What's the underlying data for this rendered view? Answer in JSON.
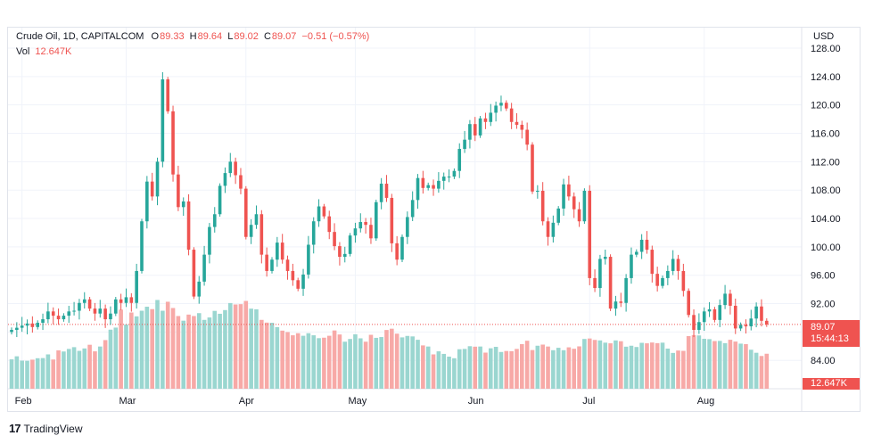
{
  "legend": {
    "symbol": "Crude Oil, 1D, CAPITALCOM",
    "o_label": "O",
    "o_value": "89.33",
    "h_label": "H",
    "h_value": "89.64",
    "l_label": "L",
    "l_value": "89.02",
    "c_label": "C",
    "c_value": "89.07",
    "change": "−0.51 (−0.57%)",
    "vol_label": "Vol",
    "vol_value": "12.647K"
  },
  "currency": "USD",
  "price_tag": {
    "price": "89.07",
    "countdown": "15:44:13"
  },
  "volume_tag": "12.647K",
  "brand": {
    "logo": "17",
    "name": "TradingView"
  },
  "colors": {
    "up": "#26a69a",
    "down": "#ef5350",
    "vol_up": "#9ad6d0",
    "vol_down": "#f7a9a7",
    "grid": "#f0f3fa"
  },
  "chart_data": {
    "type": "candlestick",
    "ylim": [
      80.5,
      128.5
    ],
    "y_ticks": [
      "128.00",
      "124.00",
      "120.00",
      "116.00",
      "112.00",
      "108.00",
      "104.00",
      "100.00",
      "96.00",
      "92.00",
      "88.00",
      "84.00"
    ],
    "month_labels": [
      {
        "label": "Feb",
        "index": 2
      },
      {
        "label": "Mar",
        "index": 22
      },
      {
        "label": "Apr",
        "index": 45
      },
      {
        "label": "May",
        "index": 66
      },
      {
        "label": "Jun",
        "index": 89
      },
      {
        "label": "Jul",
        "index": 111
      },
      {
        "label": "Aug",
        "index": 133
      }
    ],
    "last_price": 89.07,
    "closes": [
      88.3,
      88.6,
      88.9,
      89.2,
      88.7,
      89.3,
      89.8,
      90.9,
      90.3,
      89.8,
      90.3,
      90.9,
      91.0,
      92.1,
      92.6,
      91.3,
      90.6,
      91.3,
      89.8,
      90.6,
      92.6,
      92.1,
      92.9,
      92.1,
      96.6,
      103.6,
      109.2,
      107.1,
      112.0,
      123.6,
      119.1,
      110.2,
      105.6,
      106.4,
      99.6,
      93.0,
      95.1,
      98.9,
      102.8,
      104.6,
      108.6,
      110.4,
      112.0,
      110.1,
      108.2,
      101.4,
      103.1,
      104.6,
      98.9,
      96.6,
      98.2,
      100.6,
      98.2,
      96.6,
      95.3,
      94.1,
      96.1,
      100.3,
      103.6,
      105.7,
      104.3,
      102.1,
      100.1,
      98.6,
      99.0,
      101.6,
      102.6,
      103.5,
      103.1,
      101.2,
      106.3,
      108.9,
      106.9,
      100.5,
      98.2,
      101.4,
      104.2,
      106.6,
      109.7,
      108.3,
      108.7,
      108.2,
      109.3,
      109.9,
      109.9,
      110.7,
      113.8,
      115.1,
      117.3,
      115.7,
      118.1,
      117.6,
      118.9,
      119.9,
      120.3,
      119.5,
      117.6,
      117.2,
      116.5,
      114.4,
      107.8,
      107.9,
      103.6,
      101.4,
      103.4,
      105.4,
      108.8,
      107.1,
      105.3,
      103.6,
      107.9,
      95.6,
      94.2,
      98.3,
      98.6,
      91.3,
      92.3,
      92.1,
      95.6,
      98.9,
      99.3,
      101.0,
      99.6,
      96.2,
      94.5,
      95.6,
      96.6,
      98.3,
      96.6,
      93.8,
      90.4,
      88.3,
      89.4,
      90.9,
      91.2,
      89.7,
      91.8,
      93.4,
      91.7,
      88.5,
      89.0,
      88.8,
      89.9,
      91.6,
      89.58,
      89.07
    ],
    "volume": [
      18.3,
      20.2,
      17.5,
      17.4,
      18.1,
      19.0,
      19.1,
      21.4,
      18.2,
      23.9,
      23.2,
      24.8,
      25.9,
      23.6,
      25.1,
      27.4,
      23.3,
      26.3,
      30.3,
      36.8,
      38.1,
      49.3,
      40.0,
      47.5,
      45.1,
      48.6,
      51.1,
      49.6,
      55.3,
      48.6,
      54.2,
      50.3,
      45.3,
      42.4,
      46.2,
      45.3,
      47.1,
      42.9,
      44.4,
      48.5,
      46.7,
      49.0,
      53.4,
      52.5,
      52.7,
      54.7,
      49.9,
      49.5,
      42.9,
      41.2,
      41.1,
      38.4,
      36.2,
      35.3,
      33.3,
      34.6,
      33.0,
      34.6,
      33.3,
      31.5,
      31.8,
      33.0,
      36.3,
      33.8,
      29.3,
      31.0,
      33.9,
      31.4,
      29.3,
      33.6,
      31.7,
      32.2,
      36.6,
      37.4,
      34.3,
      32.0,
      32.9,
      32.6,
      30.5,
      27.0,
      26.3,
      21.4,
      23.3,
      21.7,
      20.0,
      19.0,
      24.6,
      24.8,
      26.5,
      26.2,
      26.3,
      22.5,
      25.2,
      26.1,
      22.9,
      23.5,
      23.4,
      24.8,
      27.8,
      29.9,
      24.1,
      26.8,
      27.5,
      26.3,
      24.0,
      25.5,
      24.0,
      25.8,
      24.9,
      26.4,
      31.0,
      31.3,
      30.4,
      30.1,
      28.7,
      28.3,
      30.1,
      29.6,
      26.2,
      26.8,
      26.0,
      28.6,
      28.3,
      28.8,
      28.4,
      28.7,
      25.0,
      22.3,
      23.8,
      23.6,
      32.8,
      33.4,
      33.2,
      31.1,
      30.9,
      29.7,
      29.8,
      28.4,
      30.5,
      29.4,
      28.1,
      27.8,
      24.3,
      22.4,
      20.4,
      21.8
    ]
  }
}
